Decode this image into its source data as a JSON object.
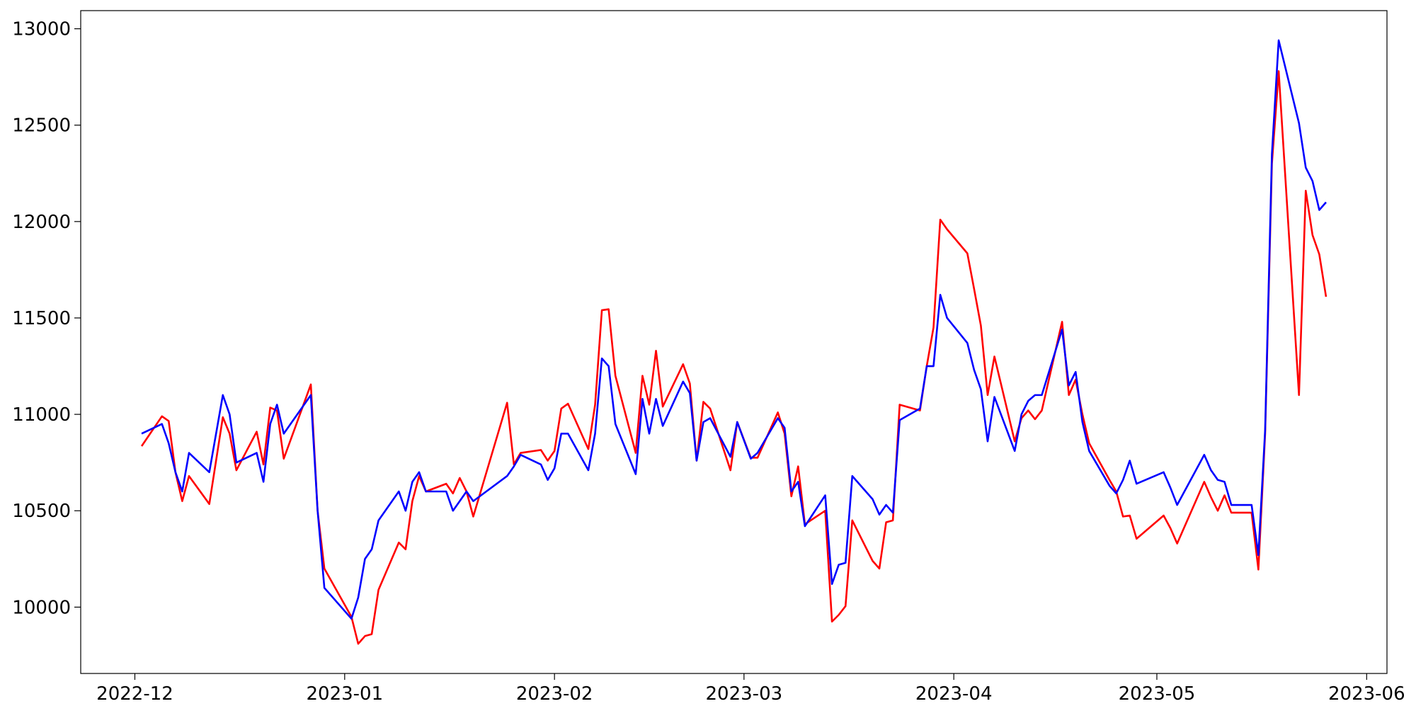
{
  "chart_data": {
    "type": "line",
    "x": [
      "2022-12-02",
      "2022-12-05",
      "2022-12-06",
      "2022-12-07",
      "2022-12-08",
      "2022-12-09",
      "2022-12-12",
      "2022-12-14",
      "2022-12-15",
      "2022-12-16",
      "2022-12-19",
      "2022-12-20",
      "2022-12-21",
      "2022-12-22",
      "2022-12-23",
      "2022-12-27",
      "2022-12-28",
      "2022-12-29",
      "2023-01-02",
      "2023-01-03",
      "2023-01-04",
      "2023-01-05",
      "2023-01-06",
      "2023-01-09",
      "2023-01-10",
      "2023-01-11",
      "2023-01-12",
      "2023-01-13",
      "2023-01-16",
      "2023-01-17",
      "2023-01-18",
      "2023-01-19",
      "2023-01-20",
      "2023-01-25",
      "2023-01-26",
      "2023-01-27",
      "2023-01-30",
      "2023-01-31",
      "2023-02-01",
      "2023-02-02",
      "2023-02-03",
      "2023-02-06",
      "2023-02-07",
      "2023-02-08",
      "2023-02-09",
      "2023-02-10",
      "2023-02-13",
      "2023-02-14",
      "2023-02-15",
      "2023-02-16",
      "2023-02-17",
      "2023-02-20",
      "2023-02-21",
      "2023-02-22",
      "2023-02-23",
      "2023-02-24",
      "2023-02-27",
      "2023-02-28",
      "2023-03-02",
      "2023-03-03",
      "2023-03-06",
      "2023-03-07",
      "2023-03-08",
      "2023-03-09",
      "2023-03-10",
      "2023-03-13",
      "2023-03-14",
      "2023-03-15",
      "2023-03-16",
      "2023-03-17",
      "2023-03-20",
      "2023-03-21",
      "2023-03-22",
      "2023-03-23",
      "2023-03-24",
      "2023-03-27",
      "2023-03-28",
      "2023-03-29",
      "2023-03-30",
      "2023-03-31",
      "2023-04-03",
      "2023-04-04",
      "2023-04-05",
      "2023-04-06",
      "2023-04-07",
      "2023-04-10",
      "2023-04-11",
      "2023-04-12",
      "2023-04-13",
      "2023-04-14",
      "2023-04-17",
      "2023-04-18",
      "2023-04-19",
      "2023-04-20",
      "2023-04-21",
      "2023-04-24",
      "2023-04-25",
      "2023-04-26",
      "2023-04-27",
      "2023-04-28",
      "2023-05-02",
      "2023-05-03",
      "2023-05-04",
      "2023-05-08",
      "2023-05-09",
      "2023-05-10",
      "2023-05-11",
      "2023-05-12",
      "2023-05-15",
      "2023-05-16",
      "2023-05-17",
      "2023-05-18",
      "2023-05-19",
      "2023-05-22",
      "2023-05-23",
      "2023-05-24",
      "2023-05-25",
      "2023-05-26"
    ],
    "series": [
      {
        "color": "#ff0000",
        "values": [
          10835,
          10990,
          10965,
          10700,
          10550,
          10680,
          10535,
          10985,
          10900,
          10710,
          10910,
          10740,
          11035,
          11020,
          10770,
          11155,
          10500,
          10200,
          9950,
          9810,
          9850,
          9860,
          10090,
          10335,
          10300,
          10550,
          10680,
          10600,
          10640,
          10590,
          10670,
          10600,
          10470,
          11060,
          10740,
          10800,
          10815,
          10760,
          10810,
          11030,
          11055,
          10820,
          11050,
          11540,
          11545,
          11200,
          10800,
          11200,
          11050,
          11330,
          11040,
          11260,
          11160,
          10760,
          11065,
          11030,
          10710,
          10960,
          10775,
          10775,
          11010,
          10900,
          10575,
          10730,
          10430,
          10500,
          9925,
          9960,
          10005,
          10450,
          10240,
          10200,
          10440,
          10450,
          11050,
          11020,
          11250,
          11450,
          12010,
          11960,
          11835,
          11650,
          11460,
          11100,
          11300,
          10860,
          10980,
          11020,
          10975,
          11020,
          11480,
          11100,
          11180,
          11000,
          10850,
          10660,
          10600,
          10470,
          10475,
          10355,
          10475,
          10410,
          10330,
          10650,
          10570,
          10500,
          10580,
          10490,
          10490,
          10195,
          10900,
          12300,
          12780,
          11100,
          12160,
          11930,
          11830,
          11610
        ]
      },
      {
        "color": "#0000ff",
        "values": [
          10900,
          10950,
          10850,
          10700,
          10600,
          10800,
          10700,
          11100,
          11000,
          10750,
          10800,
          10650,
          10950,
          11050,
          10900,
          11100,
          10500,
          10100,
          9940,
          10050,
          10250,
          10300,
          10450,
          10600,
          10500,
          10650,
          10700,
          10600,
          10600,
          10500,
          10550,
          10600,
          10550,
          10680,
          10730,
          10790,
          10740,
          10660,
          10720,
          10900,
          10900,
          10710,
          10900,
          11290,
          11250,
          10950,
          10690,
          11080,
          10900,
          11080,
          10940,
          11170,
          11110,
          10760,
          10960,
          10980,
          10780,
          10960,
          10770,
          10800,
          10980,
          10930,
          10600,
          10650,
          10420,
          10580,
          10120,
          10220,
          10230,
          10680,
          10560,
          10480,
          10530,
          10490,
          10970,
          11030,
          11250,
          11250,
          11620,
          11500,
          11370,
          11230,
          11130,
          10860,
          11090,
          10810,
          11000,
          11070,
          11100,
          11100,
          11440,
          11150,
          11220,
          10960,
          10810,
          10630,
          10590,
          10660,
          10760,
          10640,
          10700,
          10620,
          10530,
          10790,
          10710,
          10660,
          10650,
          10530,
          10530,
          10270,
          10920,
          12350,
          12940,
          12510,
          12280,
          12210,
          12060,
          12100
        ]
      }
    ],
    "xlim": [
      "2022-11-23",
      "2023-06-04"
    ],
    "xticks": [
      {
        "value": "2022-12-01",
        "label": "2022-12"
      },
      {
        "value": "2023-01-01",
        "label": "2023-01"
      },
      {
        "value": "2023-02-01",
        "label": "2023-02"
      },
      {
        "value": "2023-03-01",
        "label": "2023-03"
      },
      {
        "value": "2023-04-01",
        "label": "2023-04"
      },
      {
        "value": "2023-05-01",
        "label": "2023-05"
      },
      {
        "value": "2023-06-01",
        "label": "2023-06"
      }
    ],
    "ylim": [
      9656,
      13094
    ],
    "yticks": [
      10000,
      10500,
      11000,
      11500,
      12000,
      12500,
      13000
    ],
    "grid": false
  }
}
